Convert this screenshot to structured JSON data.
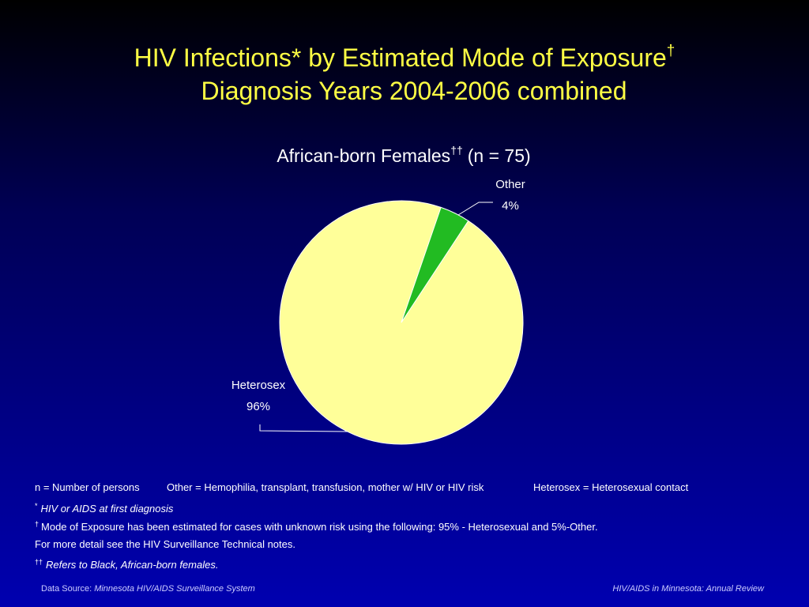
{
  "chart_data": {
    "type": "pie",
    "title": [
      "HIV Infections* by Estimated Mode of Exposure",
      "Diagnosis Years 2004-2006 combined"
    ],
    "title_mark": "†",
    "subtitle": "African-born Females",
    "subtitle_mark": "††",
    "subtitle_suffix": "(n = 75)",
    "categories": [
      "Heterosex",
      "Other"
    ],
    "values": [
      96,
      4
    ],
    "value_labels": [
      "96%",
      "4%"
    ],
    "colors": [
      "#ffff99",
      "#22bb22"
    ]
  },
  "footnotes": {
    "legend": [
      "n = Number of persons",
      "Other = Hemophilia, transplant, transfusion, mother w/ HIV or HIV risk",
      "Heterosex = Heterosexual contact"
    ],
    "notes": [
      {
        "mark": "*",
        "text": "HIV or AIDS at first diagnosis"
      },
      {
        "mark": "†",
        "text": "Mode of Exposure has been estimated for cases with unknown risk using the following: 95% - Heterosexual and 5%-Other."
      },
      {
        "mark": "††",
        "text": "Refers to Black, African-born females."
      }
    ],
    "detail": "For more detail see the HIV Surveillance Technical notes."
  },
  "footer": {
    "source_label": "Data Source:",
    "source": "Minnesota HIV/AIDS Surveillance System",
    "right": "HIV/AIDS in Minnesota: Annual Review"
  }
}
